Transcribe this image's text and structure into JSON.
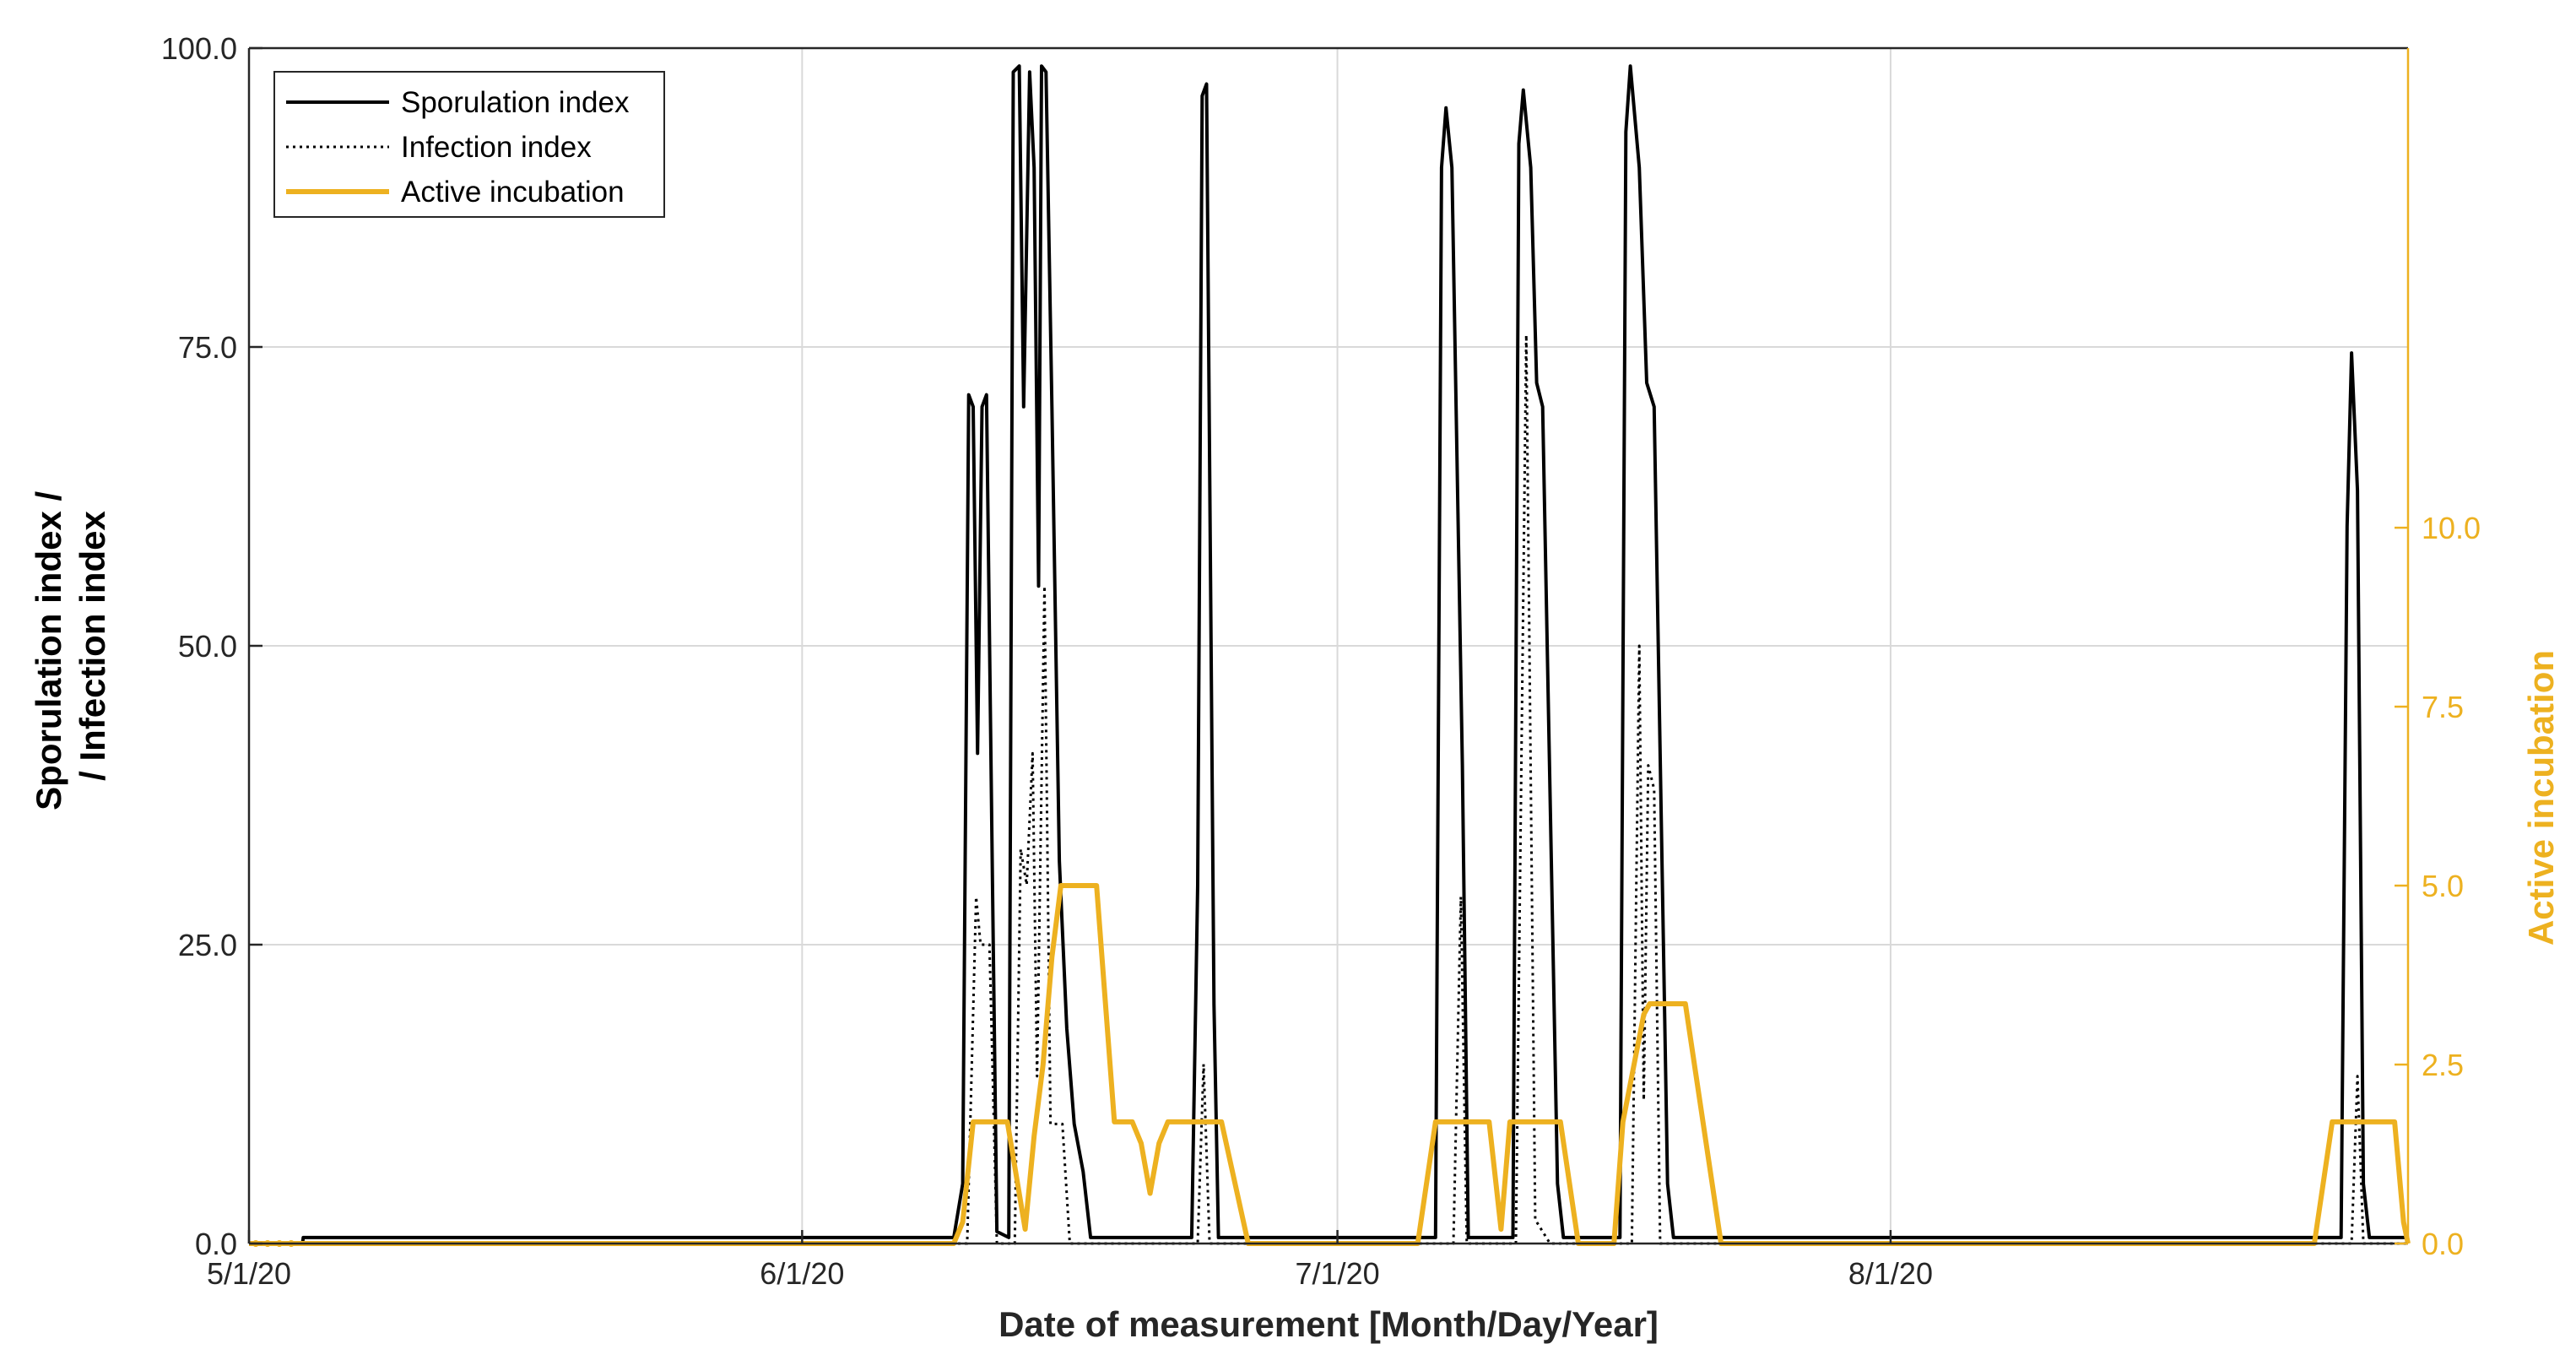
{
  "chart_data": {
    "type": "line",
    "title": "",
    "xlabel": "Date of measurement [Month/Day/Year]",
    "ylabel_left": [
      "Sporulation index /",
      "/ Infection index"
    ],
    "ylabel_right": "Active incubation",
    "x_axis_type": "date",
    "xlim": [
      "2020-05-01",
      "2020-08-30"
    ],
    "x_ticks": [
      {
        "date": "2020-05-01",
        "label": "5/1/20"
      },
      {
        "date": "2020-06-01",
        "label": "6/1/20"
      },
      {
        "date": "2020-07-01",
        "label": "7/1/20"
      },
      {
        "date": "2020-08-01",
        "label": "8/1/20"
      }
    ],
    "ylim_left": [
      0,
      100
    ],
    "y_ticks_left": [
      {
        "value": 0,
        "label": "0.0"
      },
      {
        "value": 25,
        "label": "25.0"
      },
      {
        "value": 50,
        "label": "50.0"
      },
      {
        "value": 75,
        "label": "75.0"
      },
      {
        "value": 100,
        "label": "100.0"
      }
    ],
    "ylim_right": [
      0,
      16.7
    ],
    "y_ticks_right": [
      {
        "value": 0,
        "label": "0.0"
      },
      {
        "value": 2.5,
        "label": "2.5"
      },
      {
        "value": 5,
        "label": "5.0"
      },
      {
        "value": 7.5,
        "label": "7.5"
      },
      {
        "value": 10,
        "label": "10.0"
      }
    ],
    "grid": true,
    "legend_position": "top-left",
    "colors": {
      "sporulation": "#000000",
      "infection": "#000000",
      "incubation": "#EDB120",
      "grid": "#d9d9d9",
      "axes": "#262626"
    },
    "series": [
      {
        "name": "Sporulation index",
        "axis": "left",
        "style": "solid",
        "points": [
          [
            "2020-05-01T00:00",
            0
          ],
          [
            "2020-05-04T00:00",
            0
          ],
          [
            "2020-05-04T01:00",
            0.5
          ],
          [
            "2020-06-09T12:00",
            0.5
          ],
          [
            "2020-06-10T00:00",
            5
          ],
          [
            "2020-06-10T08:00",
            71
          ],
          [
            "2020-06-10T14:00",
            70
          ],
          [
            "2020-06-10T20:00",
            41
          ],
          [
            "2020-06-11T02:00",
            70
          ],
          [
            "2020-06-11T08:00",
            71
          ],
          [
            "2020-06-11T16:00",
            30
          ],
          [
            "2020-06-11T22:00",
            1
          ],
          [
            "2020-06-12T14:00",
            0.5
          ],
          [
            "2020-06-12T20:00",
            98
          ],
          [
            "2020-06-13T04:00",
            98.5
          ],
          [
            "2020-06-13T10:00",
            70
          ],
          [
            "2020-06-13T18:00",
            98
          ],
          [
            "2020-06-14T00:00",
            90
          ],
          [
            "2020-06-14T06:00",
            55
          ],
          [
            "2020-06-14T10:00",
            98.5
          ],
          [
            "2020-06-14T16:00",
            98
          ],
          [
            "2020-06-15T00:00",
            70
          ],
          [
            "2020-06-15T10:00",
            32
          ],
          [
            "2020-06-15T20:00",
            18
          ],
          [
            "2020-06-16T06:00",
            10
          ],
          [
            "2020-06-16T18:00",
            6
          ],
          [
            "2020-06-17T04:00",
            0.5
          ],
          [
            "2020-06-22T20:00",
            0.5
          ],
          [
            "2020-06-23T04:00",
            30
          ],
          [
            "2020-06-23T10:00",
            96
          ],
          [
            "2020-06-23T16:00",
            97
          ],
          [
            "2020-06-24T02:00",
            20
          ],
          [
            "2020-06-24T08:00",
            0.5
          ],
          [
            "2020-07-06T12:00",
            0.5
          ],
          [
            "2020-07-06T20:00",
            90
          ],
          [
            "2020-07-07T02:00",
            95
          ],
          [
            "2020-07-07T10:00",
            90
          ],
          [
            "2020-07-08T00:00",
            40
          ],
          [
            "2020-07-08T08:00",
            0.5
          ],
          [
            "2020-07-10T20:00",
            0.5
          ],
          [
            "2020-07-11T04:00",
            92
          ],
          [
            "2020-07-11T10:00",
            96.5
          ],
          [
            "2020-07-11T20:00",
            90
          ],
          [
            "2020-07-12T04:00",
            72
          ],
          [
            "2020-07-12T12:00",
            70
          ],
          [
            "2020-07-13T08:00",
            5
          ],
          [
            "2020-07-13T16:00",
            0.5
          ],
          [
            "2020-07-16T20:00",
            0.5
          ],
          [
            "2020-07-17T04:00",
            93
          ],
          [
            "2020-07-17T10:00",
            98.5
          ],
          [
            "2020-07-17T22:00",
            90
          ],
          [
            "2020-07-18T08:00",
            72
          ],
          [
            "2020-07-18T18:00",
            70
          ],
          [
            "2020-07-19T12:00",
            5
          ],
          [
            "2020-07-19T20:00",
            0.5
          ],
          [
            "2020-08-26T06:00",
            0.5
          ],
          [
            "2020-08-26T14:00",
            60
          ],
          [
            "2020-08-26T20:00",
            74.5
          ],
          [
            "2020-08-27T04:00",
            63
          ],
          [
            "2020-08-27T12:00",
            5
          ],
          [
            "2020-08-27T20:00",
            0.5
          ],
          [
            "2020-08-30T00:00",
            0.5
          ]
        ]
      },
      {
        "name": "Infection index",
        "axis": "left",
        "style": "dotted",
        "points": [
          [
            "2020-05-01T00:00",
            0
          ],
          [
            "2020-06-10T06:00",
            0
          ],
          [
            "2020-06-10T18:00",
            29
          ],
          [
            "2020-06-11T00:00",
            25
          ],
          [
            "2020-06-11T12:00",
            25
          ],
          [
            "2020-06-11T22:00",
            0
          ],
          [
            "2020-06-12T22:00",
            0
          ],
          [
            "2020-06-13T06:00",
            33
          ],
          [
            "2020-06-13T14:00",
            30
          ],
          [
            "2020-06-13T22:00",
            41
          ],
          [
            "2020-06-14T04:00",
            14
          ],
          [
            "2020-06-14T14:00",
            55
          ],
          [
            "2020-06-14T22:00",
            10
          ],
          [
            "2020-06-15T14:00",
            10
          ],
          [
            "2020-06-16T00:00",
            0
          ],
          [
            "2020-06-23T04:00",
            0
          ],
          [
            "2020-06-23T12:00",
            15
          ],
          [
            "2020-06-23T20:00",
            0
          ],
          [
            "2020-07-07T12:00",
            0
          ],
          [
            "2020-07-07T22:00",
            29
          ],
          [
            "2020-07-08T06:00",
            0
          ],
          [
            "2020-07-11T00:00",
            0
          ],
          [
            "2020-07-11T14:00",
            76
          ],
          [
            "2020-07-12T02:00",
            2
          ],
          [
            "2020-07-12T22:00",
            0
          ],
          [
            "2020-07-17T12:00",
            0
          ],
          [
            "2020-07-17T22:00",
            50
          ],
          [
            "2020-07-18T04:00",
            12
          ],
          [
            "2020-07-18T10:00",
            40
          ],
          [
            "2020-07-18T18:00",
            38
          ],
          [
            "2020-07-19T02:00",
            0
          ],
          [
            "2020-08-26T20:00",
            0
          ],
          [
            "2020-08-27T04:00",
            14
          ],
          [
            "2020-08-27T12:00",
            0
          ],
          [
            "2020-08-30T00:00",
            0
          ]
        ]
      },
      {
        "name": "Active incubation",
        "axis": "right",
        "style": "solid",
        "points": [
          [
            "2020-05-01T00:00",
            0
          ],
          [
            "2020-06-09T12:00",
            0
          ],
          [
            "2020-06-10T00:00",
            0.3
          ],
          [
            "2020-06-10T14:00",
            1.7
          ],
          [
            "2020-06-12T12:00",
            1.7
          ],
          [
            "2020-06-13T12:00",
            0.2
          ],
          [
            "2020-06-14T00:00",
            1.5
          ],
          [
            "2020-06-14T12:00",
            2.5
          ],
          [
            "2020-06-15T00:00",
            4
          ],
          [
            "2020-06-15T12:00",
            5
          ],
          [
            "2020-06-17T12:00",
            5
          ],
          [
            "2020-06-18T12:00",
            1.7
          ],
          [
            "2020-06-19T12:00",
            1.7
          ],
          [
            "2020-06-20T00:00",
            1.4
          ],
          [
            "2020-06-20T12:00",
            0.7
          ],
          [
            "2020-06-21T00:00",
            1.4
          ],
          [
            "2020-06-21T12:00",
            1.7
          ],
          [
            "2020-06-24T12:00",
            1.7
          ],
          [
            "2020-06-26T00:00",
            0
          ],
          [
            "2020-07-05T12:00",
            0
          ],
          [
            "2020-07-06T12:00",
            1.7
          ],
          [
            "2020-07-09T12:00",
            1.7
          ],
          [
            "2020-07-10T04:00",
            0.2
          ],
          [
            "2020-07-10T16:00",
            1.7
          ],
          [
            "2020-07-13T12:00",
            1.7
          ],
          [
            "2020-07-14T12:00",
            0
          ],
          [
            "2020-07-16T12:00",
            0
          ],
          [
            "2020-07-17T00:00",
            1.7
          ],
          [
            "2020-07-18T04:00",
            3.2
          ],
          [
            "2020-07-18T12:00",
            3.35
          ],
          [
            "2020-07-20T12:00",
            3.35
          ],
          [
            "2020-07-22T12:00",
            0
          ],
          [
            "2020-08-24T18:00",
            0
          ],
          [
            "2020-08-25T18:00",
            1.7
          ],
          [
            "2020-08-29T06:00",
            1.7
          ],
          [
            "2020-08-29T18:00",
            0.3
          ],
          [
            "2020-08-30T00:00",
            0
          ]
        ]
      }
    ],
    "legend_entries": [
      {
        "label": "Sporulation index",
        "series": "Sporulation index"
      },
      {
        "label": "Infection index",
        "series": "Infection index"
      },
      {
        "label": "Active incubation",
        "series": "Active incubation"
      }
    ]
  }
}
